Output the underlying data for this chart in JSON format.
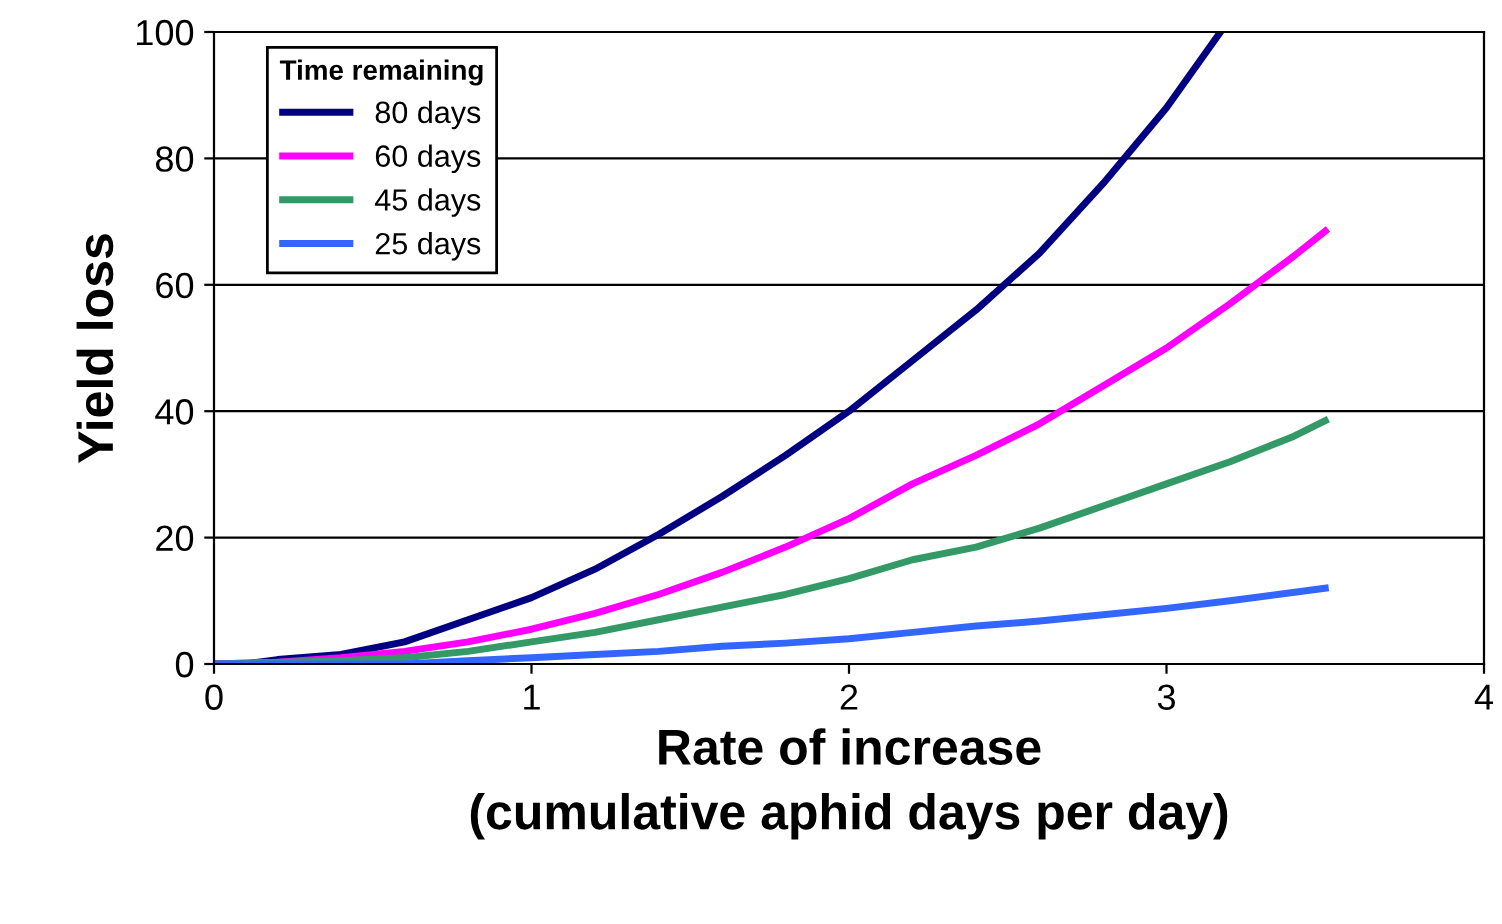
{
  "chart_data": {
    "type": "line",
    "xlabel": "Rate of increase\n(cumulative aphid days per day)",
    "ylabel": "Yield loss",
    "legend_title": "Time remaining",
    "legend": "top left",
    "grid": "y",
    "marker": "none",
    "line_style": "solid",
    "xlim": [
      0,
      4
    ],
    "xticks": [
      0,
      1,
      2,
      3,
      4
    ],
    "ylim": [
      0,
      100
    ],
    "yticks": [
      0,
      20,
      40,
      60,
      80,
      100
    ],
    "series": [
      {
        "name": "80 days",
        "color": "#000080",
        "x": [
          0,
          0.1,
          0.2,
          0.4,
          0.6,
          0.8,
          1.0,
          1.2,
          1.4,
          1.6,
          1.8,
          2.0,
          2.2,
          2.4,
          2.6,
          2.8,
          3.0,
          3.17
        ],
        "values": [
          0,
          0,
          0.7,
          1.5,
          3.5,
          7,
          10.5,
          15,
          20.5,
          26.5,
          33,
          40,
          48,
          56,
          65,
          76,
          88,
          100
        ]
      },
      {
        "name": "60 days",
        "color": "#ff00ff",
        "x": [
          0,
          0.2,
          0.4,
          0.6,
          0.8,
          1.0,
          1.2,
          1.4,
          1.6,
          1.8,
          2.0,
          2.2,
          2.4,
          2.6,
          2.8,
          3.0,
          3.2,
          3.4,
          3.5
        ],
        "values": [
          0,
          0.3,
          1,
          2,
          3.5,
          5.5,
          8,
          11,
          14.5,
          18.5,
          23,
          28.5,
          33,
          38,
          44,
          50,
          57,
          64.5,
          68.5
        ]
      },
      {
        "name": "45 days",
        "color": "#339966",
        "x": [
          0,
          0.4,
          0.6,
          0.8,
          1.0,
          1.2,
          1.4,
          1.6,
          1.8,
          2.0,
          2.2,
          2.4,
          2.6,
          2.8,
          3.0,
          3.2,
          3.4,
          3.5
        ],
        "values": [
          0,
          0.5,
          1,
          2,
          3.5,
          5,
          7,
          9,
          11,
          13.5,
          16.5,
          18.5,
          21.5,
          25,
          28.5,
          32,
          36,
          38.5
        ]
      },
      {
        "name": "25 days",
        "color": "#3366ff",
        "x": [
          0,
          0.6,
          0.8,
          1.0,
          1.2,
          1.4,
          1.6,
          1.8,
          2.0,
          2.2,
          2.4,
          2.6,
          2.8,
          3.0,
          3.2,
          3.5
        ],
        "values": [
          0,
          0,
          0.5,
          1,
          1.5,
          2,
          2.8,
          3.3,
          4,
          5,
          6,
          6.8,
          7.8,
          8.8,
          10,
          12
        ]
      }
    ]
  }
}
